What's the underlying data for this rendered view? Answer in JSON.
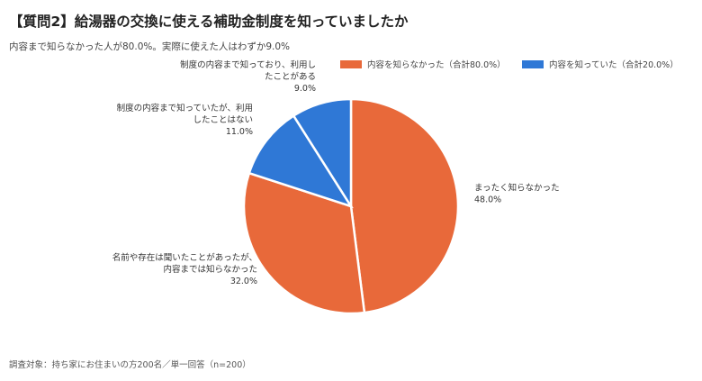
{
  "title": "【質問2】給湯器の交換に使える補助金制度を知っていましたか",
  "subtitle": "内容まで知らなかった人が80.0%。実際に使えた人はわずか9.0%",
  "legend": [
    {
      "label": "内容を知らなかった（合計80.0%）",
      "color": "#e8693a"
    },
    {
      "label": "内容を知っていた（合計20.0%）",
      "color": "#2f78d6"
    }
  ],
  "footnote": "調査対象：持ち家にお住まいの方200名／単一回答（n=200）",
  "chart_data": {
    "type": "pie",
    "slices": [
      {
        "label_lines": [
          "まったく知らなかった"
        ],
        "value": 48.0,
        "value_label": "48.0%",
        "color": "#e8693a"
      },
      {
        "label_lines": [
          "名前や存在は聞いたことがあったが、",
          "内容までは知らなかった"
        ],
        "value": 32.0,
        "value_label": "32.0%",
        "color": "#e8693a"
      },
      {
        "label_lines": [
          "制度の内容まで知っていたが、利用",
          "したことはない"
        ],
        "value": 11.0,
        "value_label": "11.0%",
        "color": "#2f78d6"
      },
      {
        "label_lines": [
          "制度の内容まで知っており、利用し",
          "たことがある"
        ],
        "value": 9.0,
        "value_label": "9.0%",
        "color": "#2f78d6"
      }
    ]
  }
}
